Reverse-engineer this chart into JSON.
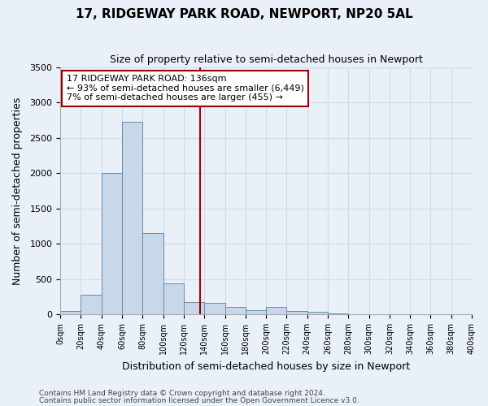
{
  "title": "17, RIDGEWAY PARK ROAD, NEWPORT, NP20 5AL",
  "subtitle": "Size of property relative to semi-detached houses in Newport",
  "xlabel": "Distribution of semi-detached houses by size in Newport",
  "ylabel": "Number of semi-detached properties",
  "bin_edges": [
    0,
    20,
    40,
    60,
    80,
    100,
    120,
    140,
    160,
    180,
    200,
    220,
    240,
    260,
    280,
    300,
    320,
    340,
    360,
    380,
    400
  ],
  "bar_heights": [
    50,
    275,
    2000,
    2725,
    1150,
    435,
    175,
    160,
    100,
    60,
    100,
    50,
    30,
    10,
    5,
    5,
    5,
    5,
    5,
    5
  ],
  "bar_color": "#c8d8e8",
  "bar_edge_color": "#6090b0",
  "vline_x": 136,
  "vline_color": "#a00000",
  "annotation_title": "17 RIDGEWAY PARK ROAD: 136sqm",
  "annotation_line1": "← 93% of semi-detached houses are smaller (6,449)",
  "annotation_line2": "7% of semi-detached houses are larger (455) →",
  "annotation_box_color": "#ffffff",
  "annotation_box_edge": "#a00000",
  "ylim": [
    0,
    3500
  ],
  "xlim": [
    0,
    400
  ],
  "yticks": [
    0,
    500,
    1000,
    1500,
    2000,
    2500,
    3000,
    3500
  ],
  "xtick_labels": [
    "0sqm",
    "20sqm",
    "40sqm",
    "60sqm",
    "80sqm",
    "100sqm",
    "120sqm",
    "140sqm",
    "160sqm",
    "180sqm",
    "200sqm",
    "220sqm",
    "240sqm",
    "260sqm",
    "280sqm",
    "300sqm",
    "320sqm",
    "340sqm",
    "360sqm",
    "380sqm",
    "400sqm"
  ],
  "grid_color": "#d0dce8",
  "background_color": "#eaf0f8",
  "footer1": "Contains HM Land Registry data © Crown copyright and database right 2024.",
  "footer2": "Contains public sector information licensed under the Open Government Licence v3.0."
}
